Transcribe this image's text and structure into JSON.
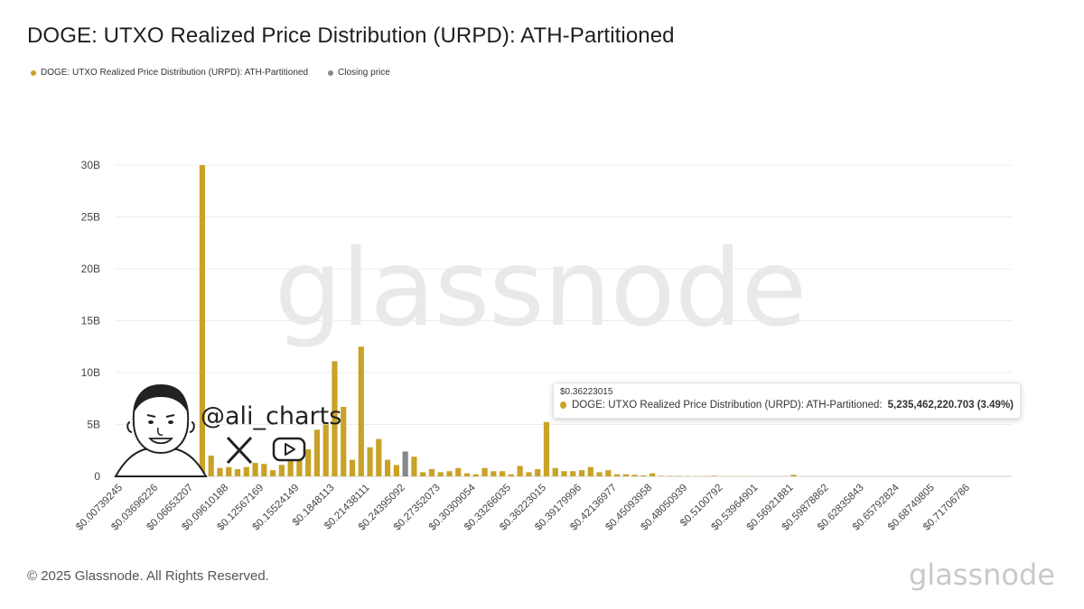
{
  "title": "DOGE: UTXO Realized Price Distribution (URPD): ATH-Partitioned",
  "legend": {
    "series_label": "DOGE: UTXO Realized Price Distribution (URPD): ATH-Partitioned",
    "series_color": "#c9a227",
    "closing_label": "Closing price",
    "closing_color": "#888888"
  },
  "watermark": "glassnode",
  "tooltip": {
    "x_label": "$0.36223015",
    "series_label": "DOGE: UTXO Realized Price Distribution (URPD): ATH-Partitioned:",
    "value": "5,235,462,220.703 (3.49%)"
  },
  "overlay": {
    "handle": "@ali_charts",
    "x_icon": "x-logo-icon",
    "play_icon": "youtube-play-icon",
    "avatar": "cartoon-avatar"
  },
  "footer": {
    "copyright": "© 2025 Glassnode. All Rights Reserved.",
    "logo": "glassnode"
  },
  "chart_data": {
    "type": "bar",
    "y_ticks": [
      "0",
      "5B",
      "10B",
      "15B",
      "20B",
      "25B",
      "30B"
    ],
    "ylim": [
      0,
      30
    ],
    "y_unit": "B",
    "x_tick_labels": [
      "$0.00739245",
      "$0.03696226",
      "$0.06653207",
      "$0.09610188",
      "$0.12567169",
      "$0.15524149",
      "$0.1848113",
      "$0.21438111",
      "$0.24395092",
      "$0.27352073",
      "$0.30309054",
      "$0.33266035",
      "$0.36223015",
      "$0.39179996",
      "$0.42136977",
      "$0.45093958",
      "$0.48050939",
      "$0.5100792",
      "$0.53964901",
      "$0.56921881",
      "$0.59878862",
      "$0.62835843",
      "$0.65792824",
      "$0.68749805",
      "$0.71706786"
    ],
    "grid": true,
    "series": [
      {
        "name": "DOGE: UTXO Realized Price Distribution (URPD): ATH-Partitioned",
        "color": "#c9a227",
        "values": [
          0.35,
          0.1,
          0.05,
          0.1,
          0.05,
          0.15,
          0.5,
          0.9,
          1.3,
          30.0,
          2.0,
          0.8,
          0.9,
          0.7,
          0.9,
          1.3,
          1.2,
          0.6,
          1.1,
          2.0,
          1.8,
          2.6,
          4.5,
          5.0,
          11.1,
          6.7,
          1.6,
          12.5,
          2.8,
          3.6,
          1.6,
          1.1,
          2.4,
          1.9,
          0.4,
          0.7,
          0.4,
          0.5,
          0.8,
          0.3,
          0.2,
          0.8,
          0.5,
          0.5,
          0.2,
          1.0,
          0.4,
          0.7,
          5.24,
          0.8,
          0.5,
          0.5,
          0.6,
          0.9,
          0.4,
          0.6,
          0.2,
          0.2,
          0.15,
          0.1,
          0.3,
          0.05,
          0.05,
          0.04,
          0.03,
          0.03,
          0.03,
          0.06,
          0.02,
          0.02,
          0.02,
          0.02,
          0.02,
          0.02,
          0.02,
          0.02,
          0.15,
          0.02,
          0.01,
          0.01,
          0.01,
          0.01,
          0.01,
          0.01,
          0.01,
          0.01,
          0.01,
          0.01,
          0.01,
          0.01,
          0.01,
          0.01,
          0.01,
          0.01,
          0.01,
          0.01,
          0.01
        ]
      }
    ],
    "closing_price_bar_index": 32,
    "closing_price_color": "#888888",
    "tooltip_bar_index": 48
  }
}
